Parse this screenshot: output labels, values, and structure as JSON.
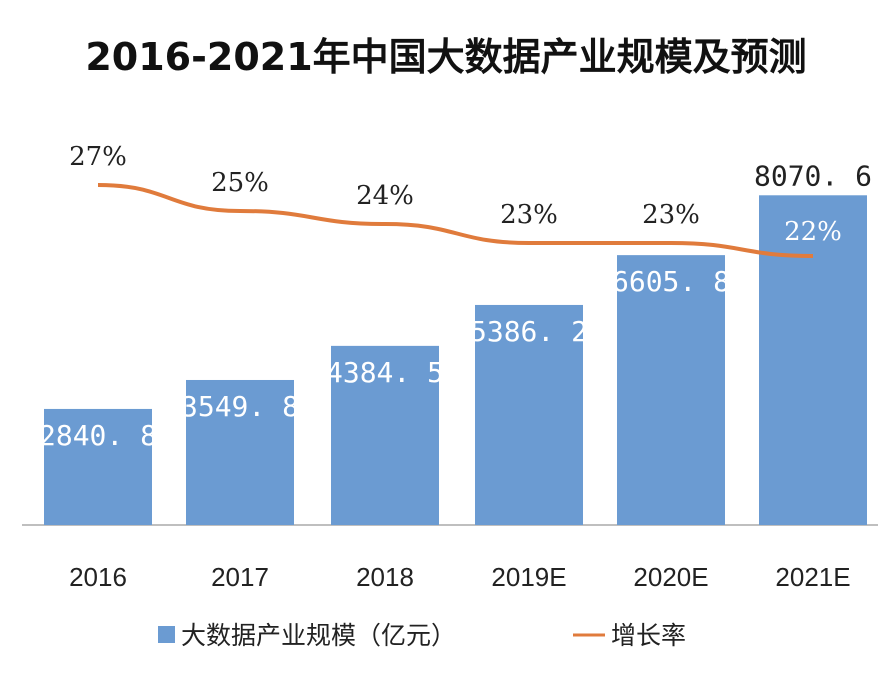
{
  "chart_data": {
    "type": "bar",
    "title": "2016-2021年中国大数据产业规模及预测",
    "categories": [
      "2016",
      "2017",
      "2018",
      "2019E",
      "2020E",
      "2021E"
    ],
    "series": [
      {
        "name": "大数据产业规模（亿元）",
        "kind": "bar",
        "values": [
          2840.8,
          3549.8,
          4384.5,
          5386.2,
          6605.8,
          8070.6
        ],
        "labels": [
          "2840. 8",
          "3549. 8",
          "4384. 5",
          "5386. 2",
          "6605. 8",
          "8070. 6"
        ]
      },
      {
        "name": "增长率",
        "kind": "line",
        "values": [
          27,
          25,
          24,
          23,
          23,
          22
        ],
        "labels": [
          "27%",
          "25%",
          "24%",
          "23%",
          "23%",
          "22%"
        ]
      }
    ],
    "ylim": [
      0,
      8200
    ],
    "xlabel": "",
    "ylabel": "",
    "grid": false,
    "legend_position": "bottom",
    "colors": {
      "bar": "#6b9bd2",
      "line": "#e07b3c",
      "axis": "#bfbfbf"
    }
  }
}
